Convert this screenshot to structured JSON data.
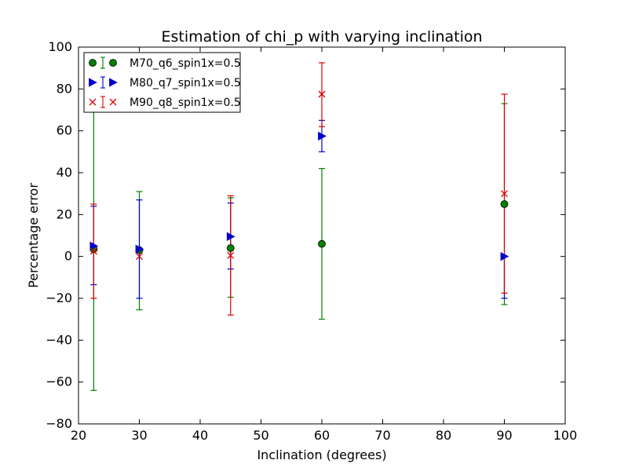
{
  "chart_data": {
    "type": "scatter",
    "title": "Estimation of chi_p with varying inclination",
    "xlabel": "Inclination (degrees)",
    "ylabel": "Percentage error",
    "xlim": [
      20,
      100
    ],
    "ylim": [
      -80,
      100
    ],
    "xticks": [
      20,
      30,
      40,
      50,
      60,
      70,
      80,
      90,
      100
    ],
    "yticks": [
      -80,
      -60,
      -40,
      -20,
      0,
      20,
      40,
      60,
      80,
      100
    ],
    "grid": false,
    "legend_position": "top-left",
    "series": [
      {
        "name": "M70_q6_spin1x=0.5",
        "color": "#008000",
        "marker": "circle",
        "x": [
          22.5,
          30,
          45,
          60,
          90
        ],
        "y": [
          3.5,
          3,
          4,
          6,
          25
        ],
        "yerr_low": [
          -64,
          -25.5,
          -19.5,
          -30,
          -23
        ],
        "yerr_high": [
          90,
          31,
          28,
          42,
          73
        ]
      },
      {
        "name": "M80_q7_spin1x=0.5",
        "color": "#0000cc",
        "marker": "triangle-right",
        "x": [
          22.5,
          30,
          45,
          60,
          90
        ],
        "y": [
          5,
          3.5,
          9.5,
          57.5,
          0
        ],
        "yerr_low": [
          -13.5,
          -20,
          -6,
          50,
          -20
        ],
        "yerr_high": [
          24,
          27,
          25.5,
          65,
          0
        ]
      },
      {
        "name": "M90_q8_spin1x=0.5",
        "color": "#e00000",
        "marker": "x",
        "x": [
          22.5,
          30,
          45,
          60,
          90
        ],
        "y": [
          2.5,
          0,
          0.5,
          77.5,
          30
        ],
        "yerr_low": [
          -20,
          0,
          -28,
          62,
          -17.5
        ],
        "yerr_high": [
          25,
          0,
          29,
          92.5,
          77.5
        ]
      }
    ]
  }
}
